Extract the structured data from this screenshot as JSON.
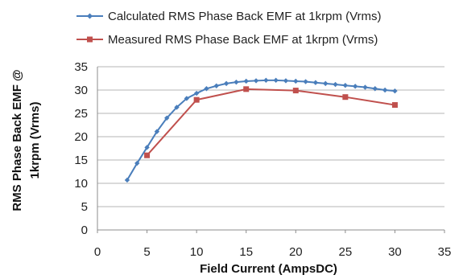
{
  "chart_data": {
    "type": "line",
    "xlabel": "Field Current (AmpsDC)",
    "ylabel": "RMS Phase Back EMF @ 1krpm (Vrms)",
    "xlim": [
      0,
      35
    ],
    "ylim": [
      0,
      35
    ],
    "xticks": [
      0,
      5,
      10,
      15,
      20,
      25,
      30,
      35
    ],
    "yticks": [
      0,
      5,
      10,
      15,
      20,
      25,
      30,
      35
    ],
    "grid": "horizontal",
    "legend": "top",
    "series": [
      {
        "name": "Calculated RMS Phase Back EMF at 1krpm (Vrms)",
        "color": "#4a7ebb",
        "marker": "diamond",
        "x": [
          3,
          4,
          5,
          6,
          7,
          8,
          9,
          10,
          11,
          12,
          13,
          14,
          15,
          16,
          17,
          18,
          19,
          20,
          21,
          22,
          23,
          24,
          25,
          26,
          27,
          28,
          29,
          30
        ],
        "y": [
          10.7,
          14.3,
          17.7,
          21.1,
          24.0,
          26.3,
          28.2,
          29.3,
          30.3,
          30.9,
          31.4,
          31.7,
          31.9,
          32.0,
          32.1,
          32.1,
          32.0,
          31.9,
          31.8,
          31.6,
          31.4,
          31.2,
          31.0,
          30.8,
          30.6,
          30.3,
          30.0,
          29.8
        ]
      },
      {
        "name": "Measured RMS Phase Back EMF at 1krpm (Vrms)",
        "color": "#c0504d",
        "marker": "square",
        "x": [
          5,
          10,
          15,
          20,
          25,
          30
        ],
        "y": [
          16.0,
          27.9,
          30.2,
          29.9,
          28.5,
          26.8
        ]
      }
    ]
  }
}
